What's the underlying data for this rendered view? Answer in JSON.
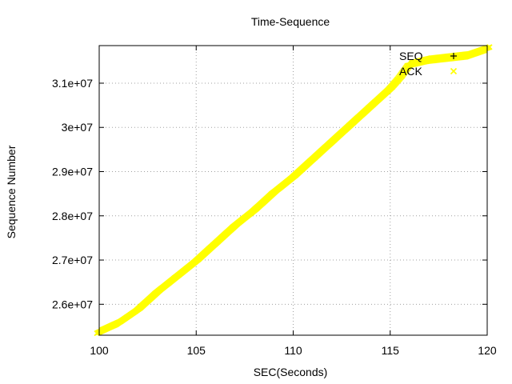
{
  "chart_data": {
    "type": "scatter",
    "title": "Time-Sequence",
    "xlabel": "SEC(Seconds)",
    "ylabel": "Sequence Number",
    "xlim": [
      100,
      120
    ],
    "ylim": [
      25300000,
      31850000
    ],
    "x_ticks": [
      100,
      105,
      110,
      115,
      120
    ],
    "x_tick_labels": [
      "100",
      "105",
      "110",
      "115",
      "120"
    ],
    "y_ticks": [
      26000000,
      27000000,
      28000000,
      29000000,
      30000000,
      31000000
    ],
    "y_tick_labels": [
      "2.6e+07",
      "2.7e+07",
      "2.8e+07",
      "2.9e+07",
      "3e+07",
      "3.1e+07"
    ],
    "grid": true,
    "legend_position": "top-right",
    "colors": {
      "seq": "#000000",
      "ack": "#ffff00"
    },
    "series": [
      {
        "name": "SEQ",
        "marker": "plus",
        "x": [
          100,
          101,
          102,
          103,
          104,
          105,
          106,
          107,
          108,
          109,
          110,
          111,
          112,
          113,
          114,
          115,
          115.5,
          116,
          117,
          118,
          119,
          120
        ],
        "y": [
          25400000,
          25600000,
          25900000,
          26300000,
          26650000,
          27000000,
          27400000,
          27800000,
          28150000,
          28550000,
          28900000,
          29300000,
          29700000,
          30100000,
          30500000,
          30900000,
          31150000,
          31450000,
          31550000,
          31600000,
          31650000,
          31800000
        ]
      },
      {
        "name": "ACK",
        "marker": "x",
        "x": [
          100,
          101,
          102,
          103,
          104,
          105,
          106,
          107,
          108,
          109,
          110,
          111,
          112,
          113,
          114,
          115,
          115.5,
          116,
          117,
          118,
          119,
          120
        ],
        "y": [
          25380000,
          25580000,
          25880000,
          26280000,
          26630000,
          26980000,
          27380000,
          27780000,
          28130000,
          28530000,
          28880000,
          29280000,
          29680000,
          30080000,
          30480000,
          30880000,
          31130000,
          31430000,
          31530000,
          31580000,
          31630000,
          31780000
        ]
      }
    ]
  }
}
